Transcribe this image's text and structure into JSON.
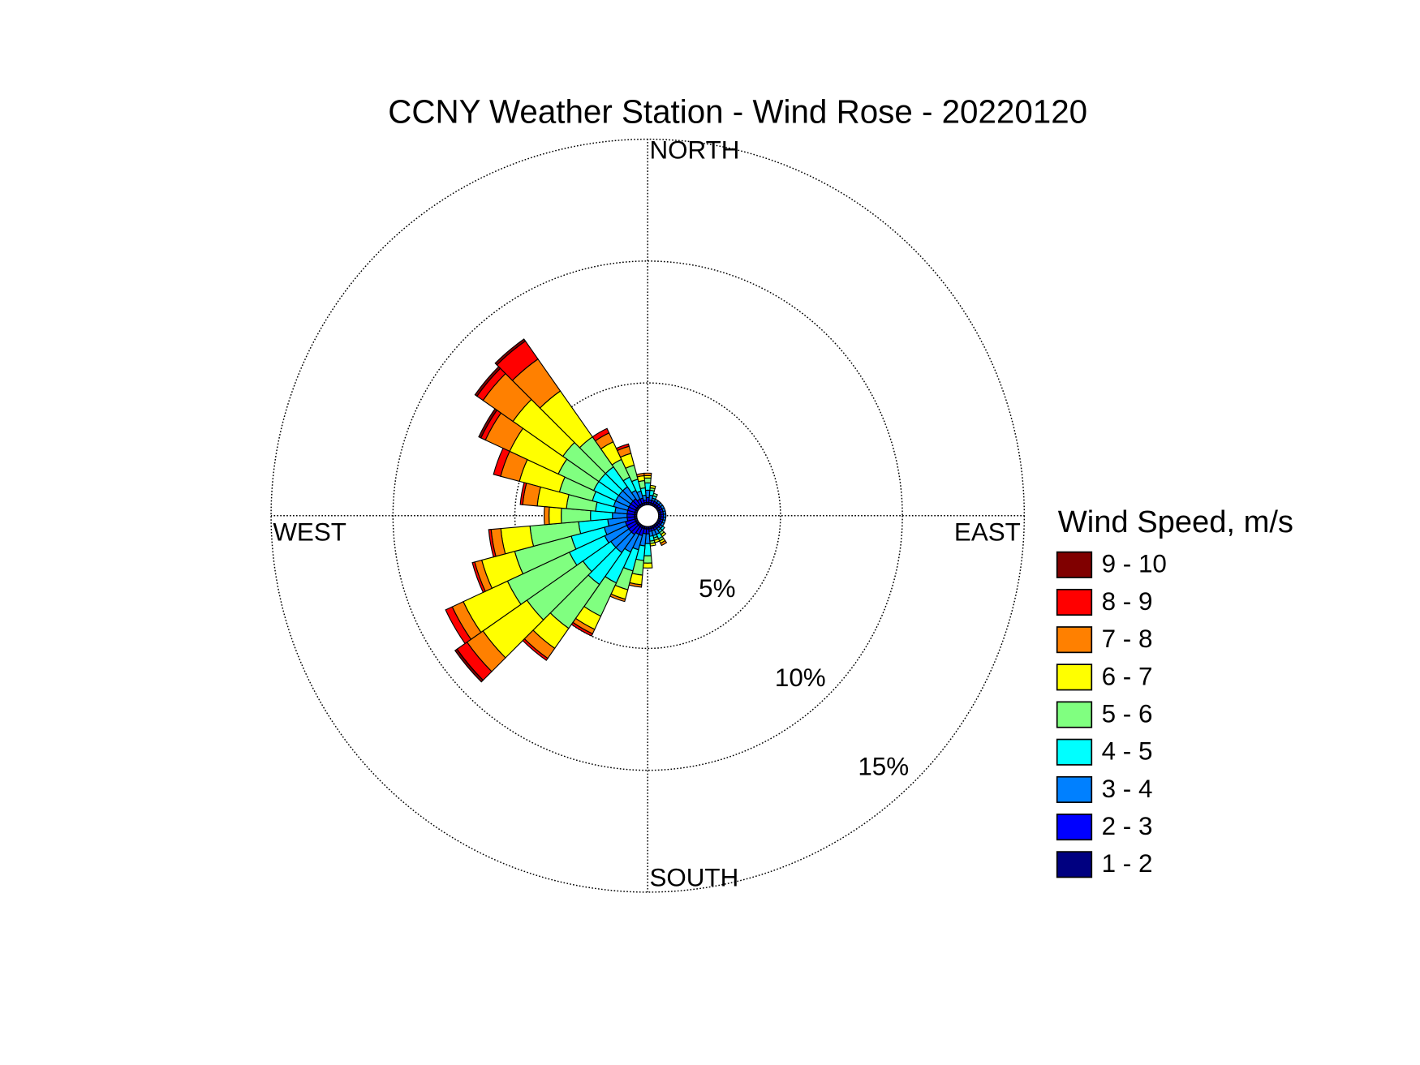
{
  "chart_data": {
    "type": "windrose",
    "title": "CCNY Weather Station - Wind Rose - 20220120",
    "legend_title": "Wind Speed, m/s",
    "legend": "right",
    "x": [
      0,
      10,
      20,
      30,
      40,
      50,
      60,
      70,
      80,
      90,
      100,
      110,
      120,
      130,
      140,
      150,
      160,
      170,
      180,
      190,
      200,
      210,
      220,
      230,
      240,
      250,
      260,
      270,
      280,
      290,
      300,
      310,
      320,
      330,
      340,
      350
    ],
    "rlim": [
      0,
      15
    ],
    "rticks": [
      {
        "value": 5,
        "label": "5%"
      },
      {
        "value": 10,
        "label": "10%"
      },
      {
        "value": 15,
        "label": "15%"
      }
    ],
    "angle_ticks": [
      {
        "value": 0,
        "label": "NORTH"
      },
      {
        "value": 90,
        "label": "EAST"
      },
      {
        "value": 180,
        "label": "SOUTH"
      },
      {
        "value": 270,
        "label": "WEST"
      }
    ],
    "grid": true,
    "series": [
      {
        "name": "1 - 2",
        "color": "#000080",
        "values": [
          0.1,
          0.1,
          0.1,
          0.1,
          0.1,
          0.1,
          0.1,
          0.1,
          0.1,
          0.1,
          0.1,
          0.1,
          0.1,
          0.1,
          0.1,
          0.1,
          0.1,
          0.1,
          0.1,
          0.1,
          0.1,
          0.1,
          0.1,
          0.1,
          0.1,
          0.1,
          0.1,
          0.1,
          0.1,
          0.1,
          0.1,
          0.1,
          0.1,
          0.1,
          0.1,
          0.1
        ]
      },
      {
        "name": "2 - 3",
        "color": "#0000ff",
        "values": [
          0.2,
          0.1,
          0.1,
          0.1,
          0.1,
          0.1,
          0.1,
          0.1,
          0.1,
          0.1,
          0.1,
          0.1,
          0.1,
          0.1,
          0.1,
          0.1,
          0.1,
          0.1,
          0.2,
          0.2,
          0.3,
          0.3,
          0.4,
          0.4,
          0.4,
          0.4,
          0.3,
          0.3,
          0.3,
          0.3,
          0.3,
          0.3,
          0.3,
          0.2,
          0.2,
          0.1
        ]
      },
      {
        "name": "3 - 4",
        "color": "#0080ff",
        "values": [
          0.3,
          0.2,
          0.1,
          0.1,
          0.1,
          0.1,
          0.1,
          0.1,
          0.1,
          0.1,
          0.1,
          0.1,
          0.1,
          0.1,
          0.1,
          0.2,
          0.2,
          0.2,
          0.4,
          0.5,
          0.6,
          0.8,
          0.9,
          0.9,
          1.0,
          0.9,
          0.8,
          0.6,
          0.5,
          0.6,
          0.6,
          0.6,
          0.6,
          0.4,
          0.3,
          0.2
        ]
      },
      {
        "name": "4 - 5",
        "color": "#00ffff",
        "values": [
          0.3,
          0.2,
          0.1,
          0,
          0,
          0,
          0,
          0,
          0,
          0,
          0,
          0,
          0,
          0.1,
          0.1,
          0.2,
          0.1,
          0.2,
          0.5,
          0.6,
          0.9,
          1.4,
          1.6,
          1.4,
          1.6,
          1.4,
          1.2,
          0.9,
          0.8,
          0.9,
          1.0,
          1.0,
          1.0,
          0.6,
          0.5,
          0.3
        ]
      },
      {
        "name": "5 - 6",
        "color": "#80ff80",
        "values": [
          0.2,
          0.1,
          0.1,
          0,
          0,
          0,
          0,
          0,
          0,
          0,
          0,
          0,
          0,
          0,
          0.1,
          0.1,
          0.1,
          0.1,
          0.3,
          0.6,
          0.8,
          1.5,
          2.2,
          2.8,
          2.8,
          2.4,
          2.0,
          1.2,
          1.2,
          1.4,
          1.6,
          1.8,
          1.5,
          0.8,
          0.6,
          0.3
        ]
      },
      {
        "name": "6 - 7",
        "color": "#ffff00",
        "values": [
          0.1,
          0.1,
          0,
          0,
          0,
          0,
          0,
          0,
          0,
          0,
          0,
          0,
          0,
          0,
          0.1,
          0.1,
          0.1,
          0.1,
          0.2,
          0.4,
          0.4,
          0.6,
          1.0,
          2.2,
          2.0,
          1.4,
          1.2,
          0.5,
          1.2,
          1.7,
          2.2,
          2.5,
          2.3,
          0.8,
          0.5,
          0.2
        ]
      },
      {
        "name": "7 - 8",
        "color": "#ff8000",
        "values": [
          0.1,
          0,
          0,
          0,
          0,
          0,
          0,
          0,
          0,
          0,
          0,
          0,
          0,
          0,
          0,
          0.1,
          0,
          0,
          0,
          0.1,
          0.1,
          0.2,
          0.5,
          0.8,
          0.5,
          0.3,
          0.4,
          0.2,
          0.6,
          0.8,
          1.1,
          1.5,
          1.6,
          0.4,
          0.3,
          0.1
        ]
      },
      {
        "name": "8 - 9",
        "color": "#ff0000",
        "values": [
          0,
          0,
          0,
          0,
          0,
          0,
          0,
          0,
          0,
          0,
          0,
          0,
          0,
          0,
          0,
          0,
          0,
          0,
          0,
          0,
          0,
          0.1,
          0.1,
          0.5,
          0.3,
          0.1,
          0.1,
          0,
          0.1,
          0.3,
          0.2,
          0.3,
          0.9,
          0.2,
          0.1,
          0
        ]
      },
      {
        "name": "9 - 10",
        "color": "#800000",
        "values": [
          0,
          0,
          0,
          0,
          0,
          0,
          0,
          0,
          0,
          0,
          0,
          0,
          0,
          0,
          0,
          0,
          0,
          0,
          0,
          0,
          0,
          0,
          0,
          0.1,
          0,
          0,
          0,
          0,
          0,
          0,
          0.1,
          0.1,
          0.1,
          0,
          0,
          0
        ]
      }
    ]
  }
}
